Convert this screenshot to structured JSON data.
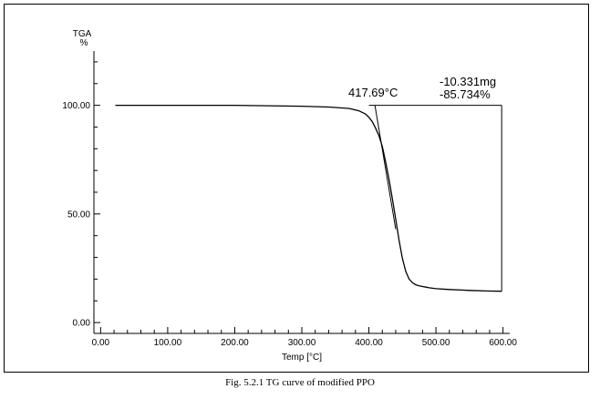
{
  "caption": "Fig. 5.2.1    TG curve of modified PPO",
  "chart_data": {
    "type": "line",
    "xlabel": "Temp [°C]",
    "ylabel_top": "TGA",
    "ylabel_unit": "%",
    "xlim": [
      -10,
      610
    ],
    "ylim": [
      -5,
      125
    ],
    "x_ticks": [
      0,
      100,
      200,
      300,
      400,
      500,
      600
    ],
    "x_tick_labels": [
      "0.00",
      "100.00",
      "200.00",
      "300.00",
      "400.00",
      "500.00",
      "600.00"
    ],
    "y_ticks": [
      0,
      50,
      100
    ],
    "y_tick_labels": [
      "0.00",
      "50.00",
      "100.00"
    ],
    "grid": false,
    "series": [
      {
        "x": [
          22,
          100,
          200,
          300,
          340,
          370,
          385,
          395,
          400,
          405,
          410,
          415,
          420,
          425,
          430,
          435,
          440,
          445,
          450,
          455,
          460,
          465,
          470,
          475,
          480,
          485,
          490,
          500,
          520,
          550,
          580,
          598
        ],
        "y": [
          100,
          100,
          100,
          99.6,
          99.2,
          98.6,
          97.5,
          96,
          94.5,
          92.5,
          89.5,
          86,
          81,
          74,
          66,
          57,
          47.5,
          38,
          29.5,
          23.5,
          20,
          18.3,
          17.4,
          16.9,
          16.6,
          16.3,
          16.0,
          15.6,
          15.2,
          14.8,
          14.5,
          14.4
        ],
        "color": "#000000"
      }
    ],
    "annotations": {
      "onset_label": "417.69°C",
      "mass_loss_mg": "-10.331mg",
      "mass_loss_pct": "-85.734%"
    },
    "onset_tangent": {
      "x": [
        409,
        440
      ],
      "y": [
        100,
        43
      ]
    },
    "step_bracket": {
      "x_start": 400,
      "x_end": 598,
      "y_top": 100,
      "y_bottom": 14.4
    }
  }
}
